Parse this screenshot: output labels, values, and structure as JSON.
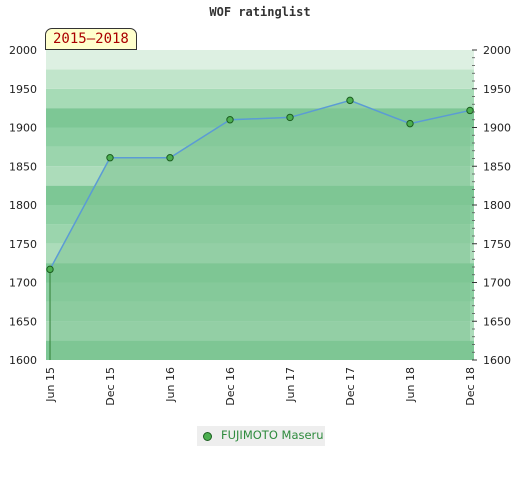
{
  "chart_data": {
    "type": "area",
    "title": "WOF ratinglist",
    "badge": "2015–2018",
    "x": [
      "Jun 15",
      "Dec 15",
      "Jun 16",
      "Dec 16",
      "Jun 17",
      "Dec 17",
      "Jun 18",
      "Dec 18"
    ],
    "series": [
      {
        "name": "FUJIMOTO Maseru",
        "values": [
          1717,
          1861,
          1861,
          1910,
          1913,
          1935,
          1905,
          1922
        ]
      }
    ],
    "ylim": [
      1600,
      2000
    ],
    "yticks": [
      1600,
      1650,
      1700,
      1750,
      1800,
      1850,
      1900,
      1950,
      2000
    ],
    "grid": true,
    "legend": "bottom-center",
    "colors": {
      "line": "#5b9bd5",
      "fill": "#7fc493",
      "marker": "#4caf50",
      "bands": [
        "#7dc795",
        "#8ed0a4",
        "#a6dbb6",
        "#c1e5cb",
        "#ddf0e2",
        "#f0f8f2"
      ]
    }
  }
}
